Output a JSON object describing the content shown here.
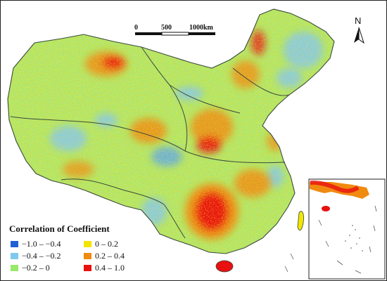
{
  "scale_bar": {
    "labels": [
      "0",
      "500",
      "1000km"
    ]
  },
  "north_arrow": {
    "label": "N",
    "icon": "north-arrow-icon"
  },
  "legend": {
    "title": "Correlation of Coefficient",
    "items": [
      {
        "label": "−1.0 – −0.4",
        "color": "#1f5fd6"
      },
      {
        "label": "0 – 0.2",
        "color": "#f2e600"
      },
      {
        "label": "−0.4 – −0.2",
        "color": "#7fc9f0"
      },
      {
        "label": "0.2 – 0.4",
        "color": "#f08a10"
      },
      {
        "label": "−0.2 – 0",
        "color": "#98e86a"
      },
      {
        "label": "0.4 – 1.0",
        "color": "#e81010"
      }
    ]
  },
  "colors": {
    "land_base": "#9ee36a",
    "dominant_green": "#a6e870",
    "positive_high": "#e81010",
    "positive_mid": "#f08a10",
    "positive_low": "#f2e600",
    "negative_mid": "#7fc9f0",
    "negative_high": "#1f5fd6",
    "boundary": "#3a4a3a"
  }
}
